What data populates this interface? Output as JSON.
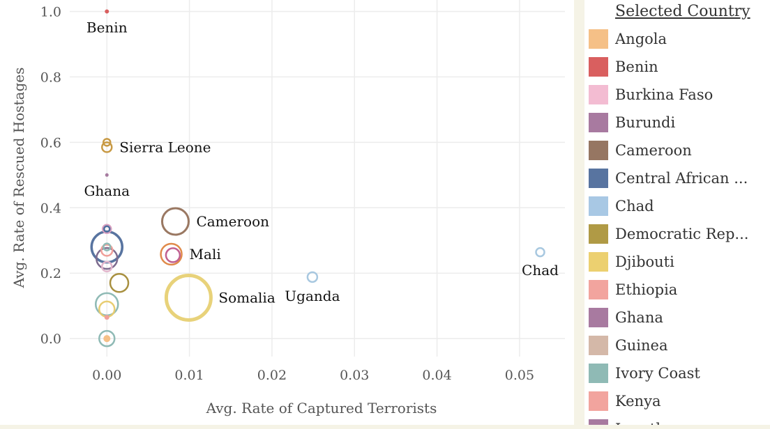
{
  "chart_data": {
    "type": "scatter",
    "title": "",
    "xlabel": "Avg. Rate of Captured Terrorists",
    "ylabel": "Avg. Rate of Rescued Hostages",
    "xlim": [
      -0.0045,
      0.0555
    ],
    "ylim": [
      -0.055,
      1.035
    ],
    "x_ticks": [
      0.0,
      0.01,
      0.02,
      0.03,
      0.04,
      0.05
    ],
    "x_tick_labels": [
      "0.00",
      "0.01",
      "0.02",
      "0.03",
      "0.04",
      "0.05"
    ],
    "y_ticks": [
      0.0,
      0.2,
      0.4,
      0.6,
      0.8,
      1.0
    ],
    "y_tick_labels": [
      "0.0",
      "0.2",
      "0.4",
      "0.6",
      "0.8",
      "1.0"
    ],
    "grid": true,
    "legend_position": "right",
    "points": [
      {
        "country": "Benin",
        "x": 0.0,
        "y": 1.0,
        "size": 3,
        "color": "#d95f5f",
        "filled": true,
        "label": "Benin",
        "label_pos": "below"
      },
      {
        "country": "Sierra Leone",
        "x": 0.0,
        "y": 0.6,
        "size": 5,
        "color": "#c89a45",
        "filled": false,
        "label": "",
        "label_pos": ""
      },
      {
        "country": "Sierra Leone",
        "x": 0.0,
        "y": 0.585,
        "size": 7,
        "color": "#c89a45",
        "filled": false,
        "label": "Sierra Leone",
        "label_pos": "right"
      },
      {
        "country": "Ghana",
        "x": 0.0,
        "y": 0.5,
        "size": 2.5,
        "color": "#a67ba0",
        "filled": true,
        "label": "Ghana",
        "label_pos": "below"
      },
      {
        "country": "Burkina Faso",
        "x": 0.0,
        "y": 0.335,
        "size": 6,
        "color": "#d8a0c0",
        "filled": false,
        "label": "",
        "label_pos": ""
      },
      {
        "country": "Central African Republic",
        "x": 0.0,
        "y": 0.335,
        "size": 4,
        "color": "#4e6e9e",
        "filled": false,
        "label": "",
        "label_pos": ""
      },
      {
        "country": "Central African Republic",
        "x": 0.0,
        "y": 0.28,
        "size": 22,
        "color": "#5874a0",
        "filled": false,
        "label": "",
        "label_pos": ""
      },
      {
        "country": "Ivory Coast",
        "x": 0.0,
        "y": 0.28,
        "size": 5,
        "color": "#8fbab5",
        "filled": false,
        "label": "",
        "label_pos": ""
      },
      {
        "country": "Ethiopia",
        "x": 0.0,
        "y": 0.27,
        "size": 8,
        "color": "#f0a09a",
        "filled": false,
        "label": "",
        "label_pos": ""
      },
      {
        "country": "Ghana",
        "x": 0.0,
        "y": 0.245,
        "size": 15,
        "color": "#7d6b8e",
        "filled": false,
        "label": "",
        "label_pos": ""
      },
      {
        "country": "Burkina Faso",
        "x": 0.0,
        "y": 0.22,
        "size": 7,
        "color": "#e2b6cc",
        "filled": false,
        "label": "",
        "label_pos": ""
      },
      {
        "country": "Democratic Republic of the Congo",
        "x": 0.0015,
        "y": 0.17,
        "size": 13,
        "color": "#a89040",
        "filled": false,
        "label": "",
        "label_pos": ""
      },
      {
        "country": "Ivory Coast",
        "x": 0.0,
        "y": 0.105,
        "size": 16,
        "color": "#8fbab5",
        "filled": false,
        "label": "",
        "label_pos": ""
      },
      {
        "country": "Djibouti",
        "x": 0.0,
        "y": 0.09,
        "size": 11,
        "color": "#e8cd72",
        "filled": false,
        "label": "",
        "label_pos": ""
      },
      {
        "country": "Ethiopia",
        "x": 0.0,
        "y": 0.065,
        "size": 3.5,
        "color": "#f0a09a",
        "filled": true,
        "label": "",
        "label_pos": ""
      },
      {
        "country": "Ivory Coast",
        "x": 0.0,
        "y": 0.0,
        "size": 11,
        "color": "#8fbab5",
        "filled": false,
        "label": "",
        "label_pos": ""
      },
      {
        "country": "Angola",
        "x": 0.0,
        "y": 0.0,
        "size": 5,
        "color": "#f5c087",
        "filled": true,
        "label": "",
        "label_pos": ""
      },
      {
        "country": "Cameroon",
        "x": 0.0083,
        "y": 0.358,
        "size": 19,
        "color": "#9a7862",
        "filled": false,
        "label": "Cameroon",
        "label_pos": "right"
      },
      {
        "country": "Mali",
        "x": 0.0078,
        "y": 0.258,
        "size": 15,
        "color": "#e08a4a",
        "filled": false,
        "label": "Mali",
        "label_pos": "right"
      },
      {
        "country": "Mali",
        "x": 0.008,
        "y": 0.255,
        "size": 10,
        "color": "#c06090",
        "filled": false,
        "label": "",
        "label_pos": ""
      },
      {
        "country": "Somalia",
        "x": 0.0099,
        "y": 0.125,
        "size": 32,
        "color": "#e8d27a",
        "filled": false,
        "label": "Somalia",
        "label_pos": "right"
      },
      {
        "country": "Uganda",
        "x": 0.0249,
        "y": 0.188,
        "size": 7,
        "color": "#a8c8e0",
        "filled": false,
        "label": "Uganda",
        "label_pos": "below"
      },
      {
        "country": "Chad",
        "x": 0.0525,
        "y": 0.264,
        "size": 6,
        "color": "#a8c8e0",
        "filled": false,
        "label": "Chad",
        "label_pos": "below"
      }
    ]
  },
  "legend": {
    "title": "Selected Country",
    "items": [
      {
        "label": "Angola",
        "color": "#f5c087"
      },
      {
        "label": "Benin",
        "color": "#d95f5f"
      },
      {
        "label": "Burkina Faso",
        "color": "#f3bcd2"
      },
      {
        "label": "Burundi",
        "color": "#a87aa0"
      },
      {
        "label": "Cameroon",
        "color": "#967662"
      },
      {
        "label": "Central African ...",
        "color": "#5874a0"
      },
      {
        "label": "Chad",
        "color": "#a8c8e4"
      },
      {
        "label": "Democratic Rep...",
        "color": "#b09a45"
      },
      {
        "label": "Djibouti",
        "color": "#ecd070"
      },
      {
        "label": "Ethiopia",
        "color": "#f2a49e"
      },
      {
        "label": "Ghana",
        "color": "#a87aa0"
      },
      {
        "label": "Guinea",
        "color": "#d4b8a8"
      },
      {
        "label": "Ivory Coast",
        "color": "#8fbab5"
      },
      {
        "label": "Kenya",
        "color": "#f2a49e"
      },
      {
        "label": "Lesotho",
        "color": "#a87aa0"
      }
    ]
  }
}
